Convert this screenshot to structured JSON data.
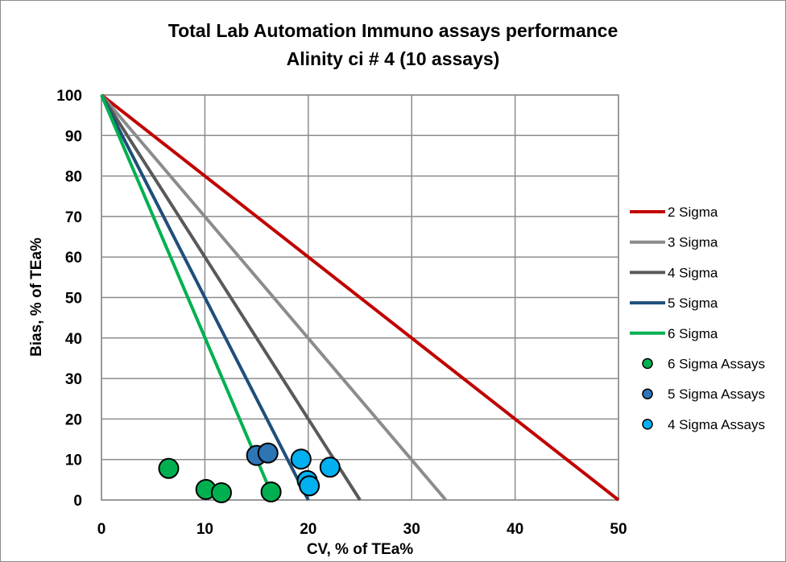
{
  "chart_data": {
    "type": "scatter",
    "title": "Total Lab Automation Immuno assays performance",
    "subtitle": "Alinity ci # 4 (10 assays)",
    "xlabel": "CV, % of TEa%",
    "ylabel": "Bias, % of TEa%",
    "xlim": [
      0,
      50
    ],
    "ylim": [
      0,
      100
    ],
    "xticks": [
      "0",
      "10",
      "20",
      "30",
      "40",
      "50"
    ],
    "yticks": [
      "0",
      "10",
      "20",
      "30",
      "40",
      "50",
      "60",
      "70",
      "80",
      "90",
      "100"
    ],
    "grid": true,
    "legend_position": "right",
    "lines": [
      {
        "name": "2 Sigma",
        "color": "#c00000",
        "points": [
          [
            0,
            100
          ],
          [
            50,
            0
          ]
        ]
      },
      {
        "name": "3 Sigma",
        "color": "#8c8c8c",
        "points": [
          [
            0,
            100
          ],
          [
            33.3,
            0
          ]
        ]
      },
      {
        "name": "4 Sigma",
        "color": "#595959",
        "points": [
          [
            0,
            100
          ],
          [
            25,
            0
          ]
        ]
      },
      {
        "name": "5 Sigma",
        "color": "#1f4e79",
        "points": [
          [
            0,
            100
          ],
          [
            20,
            0
          ]
        ]
      },
      {
        "name": "6 Sigma",
        "color": "#00b050",
        "points": [
          [
            0,
            100
          ],
          [
            16.7,
            0
          ]
        ]
      }
    ],
    "series": [
      {
        "name": "6 Sigma Assays",
        "color": "#00b050",
        "points": [
          [
            6.5,
            7.8
          ],
          [
            10.1,
            2.6
          ],
          [
            11.6,
            1.8
          ],
          [
            16.4,
            2.0
          ]
        ]
      },
      {
        "name": "5 Sigma Assays",
        "color": "#2e75b6",
        "points": [
          [
            15.0,
            11.0
          ],
          [
            16.1,
            11.6
          ]
        ]
      },
      {
        "name": "4 Sigma Assays",
        "color": "#00b0f0",
        "points": [
          [
            19.3,
            10.1
          ],
          [
            22.1,
            8.1
          ],
          [
            19.9,
            4.8
          ],
          [
            20.1,
            3.5
          ]
        ]
      }
    ]
  }
}
